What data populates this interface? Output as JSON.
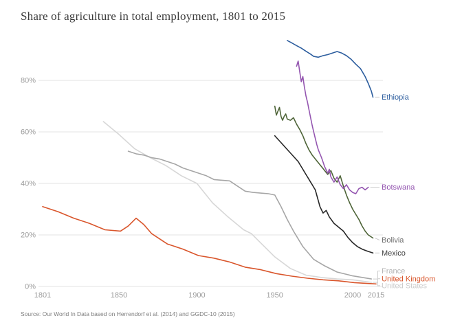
{
  "header": {
    "title": "Share of agriculture in total employment, 1801 to 2015"
  },
  "footer": {
    "source": "Source: Our World In Data based on Herrendorf et al. (2014) and GGDC-10 (2015)"
  },
  "chart_data": {
    "type": "line",
    "title": "Share of agriculture in total employment, 1801 to 2015",
    "xlabel": "",
    "ylabel": "",
    "xlim": [
      1801,
      2015
    ],
    "ylim": [
      0,
      100
    ],
    "x_ticks": [
      1801,
      1850,
      1900,
      1950,
      2000,
      2015
    ],
    "y_ticks": [
      0,
      20,
      40,
      60,
      80
    ],
    "grid": "horizontal",
    "legend_position": "right-edge-labels",
    "series": [
      {
        "id": "united-states",
        "name": "United States",
        "color": "#d7d7d7",
        "label_color": "#cbcbcb",
        "label_value": 0.3,
        "cluster": true,
        "points": [
          [
            1840,
            64.0
          ],
          [
            1850,
            59.0
          ],
          [
            1860,
            53.5
          ],
          [
            1870,
            50.0
          ],
          [
            1880,
            47.0
          ],
          [
            1890,
            43.0
          ],
          [
            1900,
            40.0
          ],
          [
            1910,
            32.5
          ],
          [
            1920,
            27.0
          ],
          [
            1930,
            22.0
          ],
          [
            1935,
            20.5
          ],
          [
            1940,
            17.5
          ],
          [
            1950,
            11.5
          ],
          [
            1960,
            7.0
          ],
          [
            1970,
            4.4
          ],
          [
            1980,
            3.5
          ],
          [
            1990,
            2.9
          ],
          [
            2000,
            2.6
          ],
          [
            2012,
            1.6
          ]
        ]
      },
      {
        "id": "france",
        "name": "France",
        "color": "#a6a6a6",
        "label_color": "#b3b3b3",
        "label_value": 6.0,
        "cluster": true,
        "points": [
          [
            1856,
            52.5
          ],
          [
            1861,
            51.5
          ],
          [
            1866,
            51.0
          ],
          [
            1871,
            50.0
          ],
          [
            1876,
            49.5
          ],
          [
            1881,
            48.5
          ],
          [
            1886,
            47.5
          ],
          [
            1891,
            46.0
          ],
          [
            1896,
            45.0
          ],
          [
            1901,
            44.0
          ],
          [
            1906,
            43.0
          ],
          [
            1911,
            41.5
          ],
          [
            1921,
            41.0
          ],
          [
            1926,
            39.0
          ],
          [
            1931,
            37.0
          ],
          [
            1936,
            36.5
          ],
          [
            1946,
            36.0
          ],
          [
            1950,
            35.5
          ],
          [
            1954,
            31.0
          ],
          [
            1958,
            26.0
          ],
          [
            1962,
            21.5
          ],
          [
            1968,
            15.5
          ],
          [
            1975,
            10.5
          ],
          [
            1982,
            8.0
          ],
          [
            1990,
            5.6
          ],
          [
            2000,
            4.1
          ],
          [
            2012,
            2.9
          ]
        ]
      },
      {
        "id": "united-kingdom",
        "name": "United Kingdom",
        "color": "#d9552b",
        "label_color": "#d9552b",
        "label_value": 3.0,
        "cluster": true,
        "points": [
          [
            1801,
            31.0
          ],
          [
            1811,
            29.0
          ],
          [
            1821,
            26.5
          ],
          [
            1831,
            24.5
          ],
          [
            1841,
            22.0
          ],
          [
            1851,
            21.5
          ],
          [
            1856,
            23.5
          ],
          [
            1861,
            26.5
          ],
          [
            1866,
            24.0
          ],
          [
            1871,
            20.5
          ],
          [
            1881,
            16.5
          ],
          [
            1891,
            14.5
          ],
          [
            1901,
            12.0
          ],
          [
            1911,
            11.0
          ],
          [
            1921,
            9.5
          ],
          [
            1931,
            7.5
          ],
          [
            1941,
            6.5
          ],
          [
            1951,
            5.0
          ],
          [
            1961,
            4.0
          ],
          [
            1971,
            3.2
          ],
          [
            1981,
            2.6
          ],
          [
            1991,
            2.2
          ],
          [
            2001,
            1.5
          ],
          [
            2015,
            1.0
          ]
        ]
      },
      {
        "id": "bolivia",
        "name": "Bolivia",
        "color": "#4e6438",
        "label_color": "#6d6d6d",
        "label_value": 18.0,
        "cluster": false,
        "points": [
          [
            1950,
            70.0
          ],
          [
            1951,
            66.5
          ],
          [
            1952,
            68.0
          ],
          [
            1953,
            69.5
          ],
          [
            1954,
            66.0
          ],
          [
            1955,
            64.5
          ],
          [
            1956,
            66.0
          ],
          [
            1957,
            67.0
          ],
          [
            1958,
            65.0
          ],
          [
            1960,
            64.5
          ],
          [
            1962,
            65.5
          ],
          [
            1964,
            63.0
          ],
          [
            1966,
            61.0
          ],
          [
            1968,
            58.5
          ],
          [
            1970,
            55.5
          ],
          [
            1972,
            53.0
          ],
          [
            1974,
            51.0
          ],
          [
            1976,
            49.5
          ],
          [
            1978,
            48.0
          ],
          [
            1980,
            46.5
          ],
          [
            1982,
            45.0
          ],
          [
            1984,
            43.5
          ],
          [
            1986,
            45.0
          ],
          [
            1988,
            42.0
          ],
          [
            1990,
            40.5
          ],
          [
            1992,
            43.0
          ],
          [
            1994,
            39.0
          ],
          [
            1996,
            35.5
          ],
          [
            1998,
            32.5
          ],
          [
            2000,
            30.0
          ],
          [
            2002,
            28.0
          ],
          [
            2004,
            26.0
          ],
          [
            2006,
            23.5
          ],
          [
            2008,
            21.5
          ],
          [
            2010,
            20.0
          ],
          [
            2013,
            18.8
          ]
        ]
      },
      {
        "id": "mexico",
        "name": "Mexico",
        "color": "#262626",
        "label_color": "#3d3d3d",
        "label_value": 13.0,
        "cluster": false,
        "points": [
          [
            1950,
            58.5
          ],
          [
            1953,
            56.5
          ],
          [
            1956,
            54.5
          ],
          [
            1959,
            52.5
          ],
          [
            1962,
            50.5
          ],
          [
            1965,
            48.5
          ],
          [
            1968,
            45.5
          ],
          [
            1970,
            43.5
          ],
          [
            1973,
            40.5
          ],
          [
            1976,
            37.5
          ],
          [
            1979,
            31.0
          ],
          [
            1981,
            28.5
          ],
          [
            1983,
            29.5
          ],
          [
            1985,
            27.0
          ],
          [
            1988,
            24.5
          ],
          [
            1991,
            23.0
          ],
          [
            1994,
            21.5
          ],
          [
            1997,
            19.0
          ],
          [
            2000,
            17.0
          ],
          [
            2003,
            15.5
          ],
          [
            2006,
            14.5
          ],
          [
            2009,
            13.8
          ],
          [
            2013,
            13.0
          ]
        ]
      },
      {
        "id": "ethiopia",
        "name": "Ethiopia",
        "color": "#2c5d9e",
        "label_color": "#2c5d9e",
        "label_value": 73.5,
        "cluster": false,
        "points": [
          [
            1958,
            95.5
          ],
          [
            1961,
            94.5
          ],
          [
            1964,
            93.5
          ],
          [
            1967,
            92.5
          ],
          [
            1970,
            91.3
          ],
          [
            1973,
            90.2
          ],
          [
            1975,
            89.3
          ],
          [
            1978,
            89.0
          ],
          [
            1981,
            89.6
          ],
          [
            1984,
            90.0
          ],
          [
            1987,
            90.6
          ],
          [
            1990,
            91.2
          ],
          [
            1993,
            90.6
          ],
          [
            1996,
            89.6
          ],
          [
            1999,
            88.2
          ],
          [
            2002,
            86.3
          ],
          [
            2005,
            84.6
          ],
          [
            2008,
            81.5
          ],
          [
            2010,
            78.8
          ],
          [
            2012,
            75.8
          ],
          [
            2013,
            73.5
          ]
        ]
      },
      {
        "id": "botswana",
        "name": "Botswana",
        "color": "#9456b0",
        "label_color": "#9456b0",
        "label_value": 38.5,
        "cluster": false,
        "points": [
          [
            1964,
            85.5
          ],
          [
            1965,
            87.5
          ],
          [
            1966,
            83.5
          ],
          [
            1967,
            79.5
          ],
          [
            1968,
            81.5
          ],
          [
            1969,
            77.5
          ],
          [
            1970,
            74.0
          ],
          [
            1971,
            71.5
          ],
          [
            1972,
            68.5
          ],
          [
            1973,
            65.5
          ],
          [
            1974,
            62.5
          ],
          [
            1975,
            60.0
          ],
          [
            1976,
            57.5
          ],
          [
            1977,
            55.0
          ],
          [
            1978,
            53.0
          ],
          [
            1980,
            50.0
          ],
          [
            1982,
            46.5
          ],
          [
            1984,
            44.0
          ],
          [
            1985,
            45.5
          ],
          [
            1986,
            42.5
          ],
          [
            1988,
            40.5
          ],
          [
            1990,
            42.5
          ],
          [
            1992,
            39.5
          ],
          [
            1994,
            38.0
          ],
          [
            1996,
            39.5
          ],
          [
            1998,
            37.5
          ],
          [
            2000,
            36.5
          ],
          [
            2002,
            36.0
          ],
          [
            2004,
            38.0
          ],
          [
            2006,
            38.5
          ],
          [
            2008,
            37.5
          ],
          [
            2010,
            38.5
          ]
        ]
      }
    ],
    "axis_text_color": "#9c9c9c",
    "gridline_color": "#e3e3e3",
    "connector_color": "#cccccc"
  }
}
